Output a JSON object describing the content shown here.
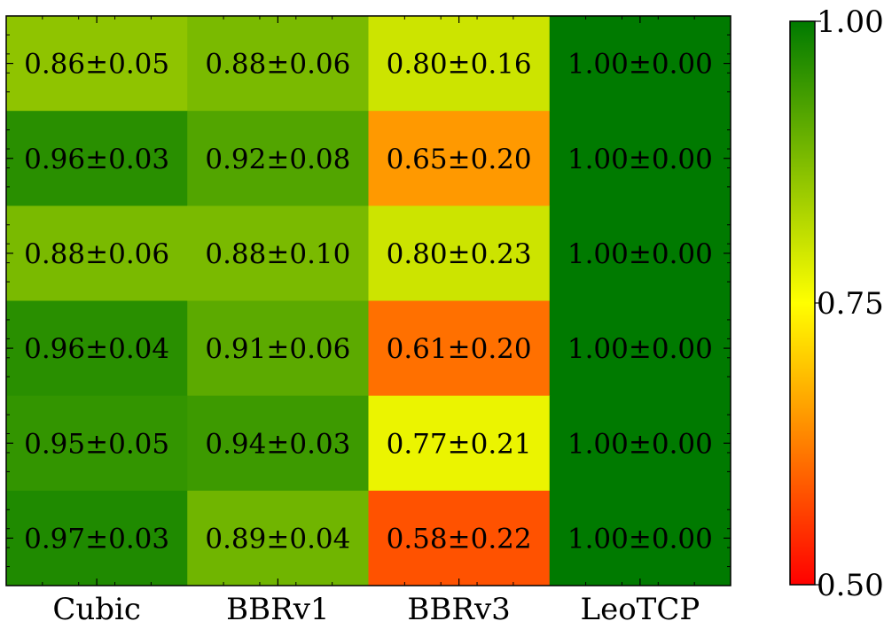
{
  "chart_data": {
    "type": "heatmap",
    "title": "",
    "xlabel": "",
    "ylabel": "",
    "columns": [
      "Cubic",
      "BBRv1",
      "BBRv3",
      "LeoTCP"
    ],
    "rows": [
      {
        "values": [
          0.86,
          0.88,
          0.8,
          1.0
        ],
        "labels": [
          "0.86±0.05",
          "0.88±0.06",
          "0.80±0.16",
          "1.00±0.00"
        ]
      },
      {
        "values": [
          0.96,
          0.92,
          0.65,
          1.0
        ],
        "labels": [
          "0.96±0.03",
          "0.92±0.08",
          "0.65±0.20",
          "1.00±0.00"
        ]
      },
      {
        "values": [
          0.88,
          0.88,
          0.8,
          1.0
        ],
        "labels": [
          "0.88±0.06",
          "0.88±0.10",
          "0.80±0.23",
          "1.00±0.00"
        ]
      },
      {
        "values": [
          0.96,
          0.91,
          0.61,
          1.0
        ],
        "labels": [
          "0.96±0.04",
          "0.91±0.06",
          "0.61±0.20",
          "1.00±0.00"
        ]
      },
      {
        "values": [
          0.95,
          0.94,
          0.77,
          1.0
        ],
        "labels": [
          "0.95±0.05",
          "0.94±0.03",
          "0.77±0.21",
          "1.00±0.00"
        ]
      },
      {
        "values": [
          0.97,
          0.89,
          0.58,
          1.0
        ],
        "labels": [
          "0.97±0.03",
          "0.89±0.04",
          "0.58±0.22",
          "1.00±0.00"
        ]
      }
    ],
    "colorbar": {
      "range": [
        0.5,
        1.0
      ],
      "tick_values": [
        0.5,
        0.75,
        1.0
      ],
      "tick_labels": [
        "0.50",
        "0.75",
        "1.00"
      ],
      "colors": [
        "#ff0000",
        "#ffff00",
        "#007a00"
      ]
    },
    "grid": false
  }
}
